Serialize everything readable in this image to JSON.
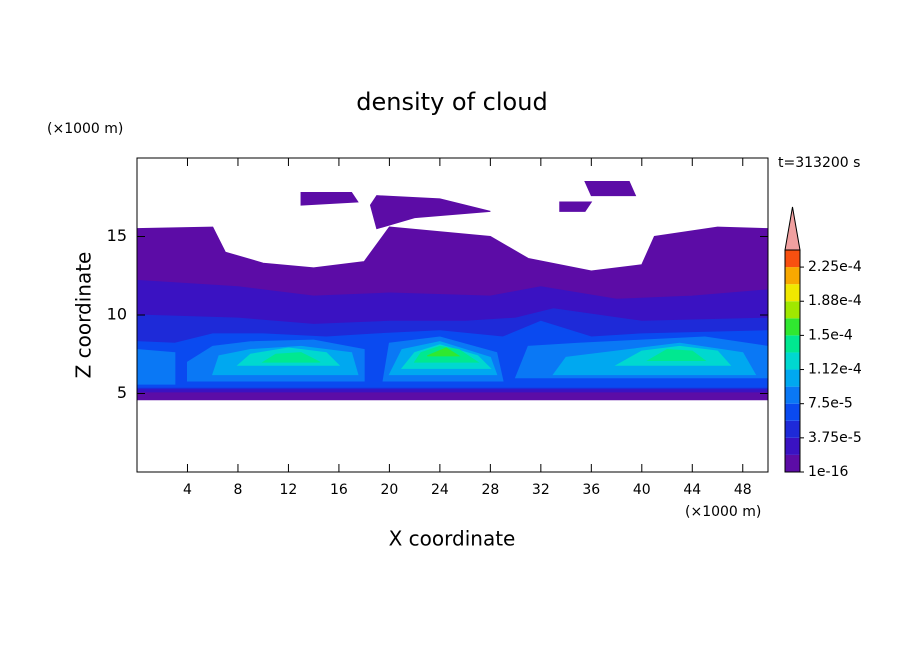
{
  "chart_data": {
    "type": "contour",
    "title": "density of cloud",
    "x_label": "X coordinate",
    "y_label": "Z coordinate",
    "x_unit": "(×1000 m)",
    "y_unit": "(×1000 m)",
    "time_label": "t=313200 s",
    "xlim": [
      0,
      50
    ],
    "ylim": [
      0,
      20
    ],
    "xticks": [
      4,
      8,
      12,
      16,
      20,
      24,
      28,
      32,
      36,
      40,
      44,
      48
    ],
    "yticks": [
      5,
      10,
      15
    ],
    "levels": [
      1e-16,
      1.875e-05,
      3.75e-05,
      5.625e-05,
      7.5e-05,
      9.375e-05,
      0.0001125,
      0.00013125,
      0.00015,
      0.00016875,
      0.0001875,
      0.00020625,
      0.000225,
      0.00024375
    ],
    "colors": [
      "#5c0ca6",
      "#3a12c2",
      "#1e2ad8",
      "#0a4af0",
      "#0a78f5",
      "#00a8f0",
      "#00d8d0",
      "#00e890",
      "#30e830",
      "#a0e800",
      "#f0e800",
      "#f8a800",
      "#f85010"
    ],
    "extend_color": "#f0a0a0",
    "colorbar_ticks": [
      {
        "value": 1e-16,
        "label": "1e-16"
      },
      {
        "value": 3.75e-05,
        "label": "3.75e-5"
      },
      {
        "value": 7.5e-05,
        "label": "7.5e-5"
      },
      {
        "value": 0.0001125,
        "label": "1.12e-4"
      },
      {
        "value": 0.00015,
        "label": "1.5e-4"
      },
      {
        "value": 0.0001875,
        "label": "1.88e-4"
      },
      {
        "value": 0.000225,
        "label": "2.25e-4"
      }
    ],
    "regions": [
      {
        "level": 1e-16,
        "points": [
          [
            0,
            4.6
          ],
          [
            50,
            4.6
          ],
          [
            50,
            15.5
          ],
          [
            46,
            15.6
          ],
          [
            41,
            15
          ],
          [
            40,
            13.2
          ],
          [
            36,
            12.8
          ],
          [
            31,
            13.6
          ],
          [
            28,
            15
          ],
          [
            20,
            15.6
          ],
          [
            18,
            13.4
          ],
          [
            14,
            13
          ],
          [
            10,
            13.3
          ],
          [
            7,
            14
          ],
          [
            6,
            15.6
          ],
          [
            0,
            15.5
          ]
        ]
      },
      {
        "level": 1e-16,
        "points": [
          [
            13,
            17.8
          ],
          [
            17,
            17.8
          ],
          [
            17.5,
            17.2
          ],
          [
            13,
            17
          ]
        ]
      },
      {
        "level": 1e-16,
        "points": [
          [
            18.5,
            17
          ],
          [
            19,
            17.6
          ],
          [
            24,
            17.4
          ],
          [
            28,
            16.6
          ],
          [
            22,
            16.2
          ],
          [
            19,
            15.5
          ]
        ]
      },
      {
        "level": 1e-16,
        "points": [
          [
            33.5,
            17.2
          ],
          [
            36,
            17.2
          ],
          [
            35.5,
            16.6
          ],
          [
            33.5,
            16.6
          ]
        ]
      },
      {
        "level": 1e-16,
        "points": [
          [
            35.5,
            18.5
          ],
          [
            39,
            18.5
          ],
          [
            39.5,
            17.6
          ],
          [
            36,
            17.6
          ]
        ]
      },
      {
        "level": 1.875e-05,
        "points": [
          [
            0,
            5.1
          ],
          [
            50,
            5.1
          ],
          [
            50,
            11.6
          ],
          [
            44,
            11.2
          ],
          [
            38,
            11
          ],
          [
            32,
            11.8
          ],
          [
            28,
            11.2
          ],
          [
            20,
            11.4
          ],
          [
            14,
            11.2
          ],
          [
            8,
            11.8
          ],
          [
            0,
            12.2
          ]
        ]
      },
      {
        "level": 3.75e-05,
        "points": [
          [
            0,
            5.3
          ],
          [
            50,
            5.3
          ],
          [
            50,
            9.8
          ],
          [
            40,
            9.6
          ],
          [
            33,
            10.4
          ],
          [
            30,
            9.8
          ],
          [
            26,
            9.6
          ],
          [
            20,
            9.6
          ],
          [
            14,
            9.4
          ],
          [
            8,
            9.8
          ],
          [
            0,
            10
          ]
        ]
      },
      {
        "level": 5.625e-05,
        "points": [
          [
            0,
            5.4
          ],
          [
            50,
            5.4
          ],
          [
            50,
            9
          ],
          [
            40,
            8.8
          ],
          [
            36,
            8.6
          ],
          [
            32,
            9.6
          ],
          [
            29,
            8.6
          ],
          [
            24,
            9
          ],
          [
            19,
            8.8
          ],
          [
            15,
            8.6
          ],
          [
            10,
            8.8
          ],
          [
            6,
            8.8
          ],
          [
            3,
            8.2
          ],
          [
            0,
            8.3
          ]
        ]
      },
      {
        "level": 7.5e-05,
        "points": [
          [
            0,
            5.6
          ],
          [
            3,
            5.6
          ],
          [
            3,
            7.6
          ],
          [
            0,
            7.8
          ]
        ]
      },
      {
        "level": 7.5e-05,
        "points": [
          [
            4,
            5.8
          ],
          [
            18,
            5.8
          ],
          [
            18,
            7.8
          ],
          [
            14,
            8.4
          ],
          [
            9,
            8.3
          ],
          [
            6,
            8
          ],
          [
            4,
            7
          ]
        ]
      },
      {
        "level": 7.5e-05,
        "points": [
          [
            19.5,
            5.8
          ],
          [
            29,
            5.8
          ],
          [
            28.5,
            7.6
          ],
          [
            24,
            8.6
          ],
          [
            20,
            8.2
          ]
        ]
      },
      {
        "level": 7.5e-05,
        "points": [
          [
            30,
            6
          ],
          [
            50,
            6
          ],
          [
            50,
            8
          ],
          [
            45,
            8.6
          ],
          [
            40,
            8.4
          ],
          [
            35,
            8.2
          ],
          [
            31,
            8
          ]
        ]
      },
      {
        "level": 9.375e-05,
        "points": [
          [
            6,
            6.2
          ],
          [
            17.5,
            6.2
          ],
          [
            17,
            7.6
          ],
          [
            13,
            8
          ],
          [
            9,
            7.8
          ],
          [
            6.5,
            7.4
          ]
        ]
      },
      {
        "level": 9.375e-05,
        "points": [
          [
            20,
            6.2
          ],
          [
            28.5,
            6.2
          ],
          [
            28,
            7.3
          ],
          [
            24,
            8.3
          ],
          [
            21,
            7.8
          ]
        ]
      },
      {
        "level": 9.375e-05,
        "points": [
          [
            33,
            6.2
          ],
          [
            49,
            6.2
          ],
          [
            48,
            7.6
          ],
          [
            43,
            8.2
          ],
          [
            39,
            7.8
          ],
          [
            34,
            7.3
          ]
        ]
      },
      {
        "level": 0.0001125,
        "points": [
          [
            8,
            6.8
          ],
          [
            16,
            6.8
          ],
          [
            15,
            7.6
          ],
          [
            12,
            7.9
          ],
          [
            9,
            7.5
          ]
        ]
      },
      {
        "level": 0.0001125,
        "points": [
          [
            21,
            6.6
          ],
          [
            28,
            6.6
          ],
          [
            27,
            7.4
          ],
          [
            24,
            8.1
          ],
          [
            22,
            7.6
          ]
        ]
      },
      {
        "level": 0.0001125,
        "points": [
          [
            38,
            6.8
          ],
          [
            47,
            6.8
          ],
          [
            46,
            7.7
          ],
          [
            43,
            8
          ],
          [
            40,
            7.7
          ]
        ]
      },
      {
        "level": 0.00013125,
        "points": [
          [
            10,
            7
          ],
          [
            14.5,
            7
          ],
          [
            13,
            7.6
          ],
          [
            11,
            7.5
          ]
        ]
      },
      {
        "level": 0.00013125,
        "points": [
          [
            22,
            7
          ],
          [
            27,
            7
          ],
          [
            25.5,
            7.8
          ],
          [
            24,
            8
          ],
          [
            22.5,
            7.6
          ]
        ]
      },
      {
        "level": 0.00013125,
        "points": [
          [
            40.5,
            7.1
          ],
          [
            45,
            7.1
          ],
          [
            44,
            7.7
          ],
          [
            42,
            7.8
          ]
        ]
      },
      {
        "level": 0.00015,
        "points": [
          [
            23,
            7.4
          ],
          [
            25.5,
            7.4
          ],
          [
            24.5,
            7.9
          ]
        ]
      }
    ]
  }
}
